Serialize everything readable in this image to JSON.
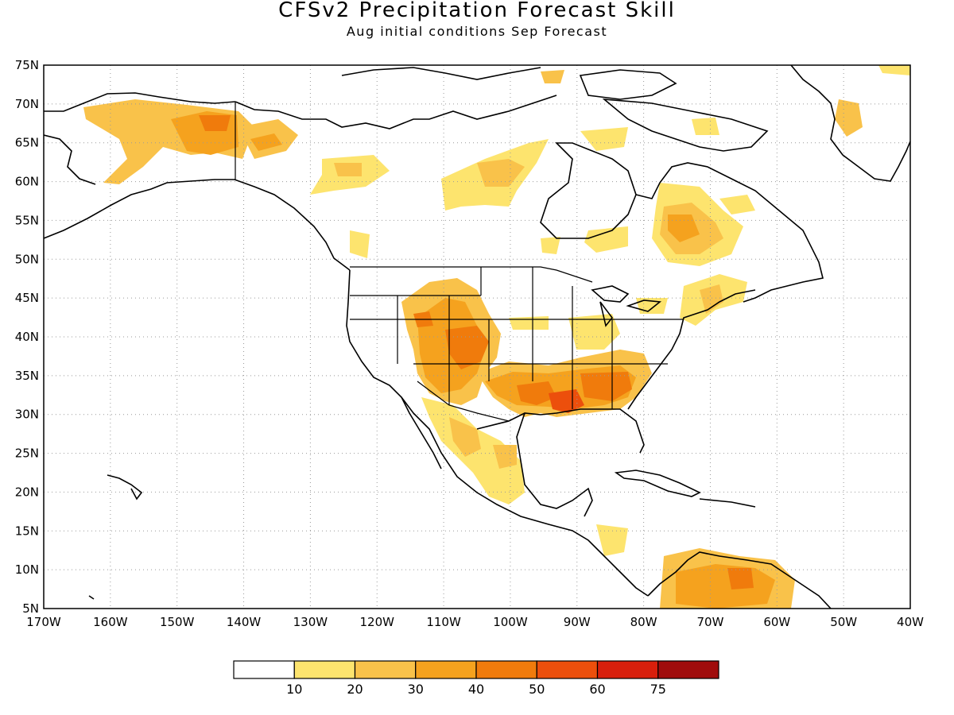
{
  "title": "CFSv2 Precipitation Forecast Skill",
  "subtitle": "Aug initial conditions  Sep Forecast",
  "map": {
    "lon_range": [
      -170,
      -40
    ],
    "lat_range": [
      5,
      75
    ],
    "lat_labels": [
      "75N",
      "70N",
      "65N",
      "60N",
      "55N",
      "50N",
      "45N",
      "40N",
      "35N",
      "30N",
      "25N",
      "20N",
      "15N",
      "10N",
      "5N"
    ],
    "lon_labels": [
      "170W",
      "160W",
      "150W",
      "140W",
      "130W",
      "120W",
      "110W",
      "100W",
      "90W",
      "80W",
      "70W",
      "60W",
      "50W",
      "40W"
    ],
    "grid": "dotted"
  },
  "colorbar": {
    "colors": [
      "#ffffff",
      "#fde46e",
      "#f9c24a",
      "#f5a21e",
      "#f07b0c",
      "#ec4f0c",
      "#d81f0c",
      "#a00c0c"
    ],
    "labels": [
      "10",
      "20",
      "30",
      "40",
      "50",
      "60",
      "75"
    ]
  }
}
